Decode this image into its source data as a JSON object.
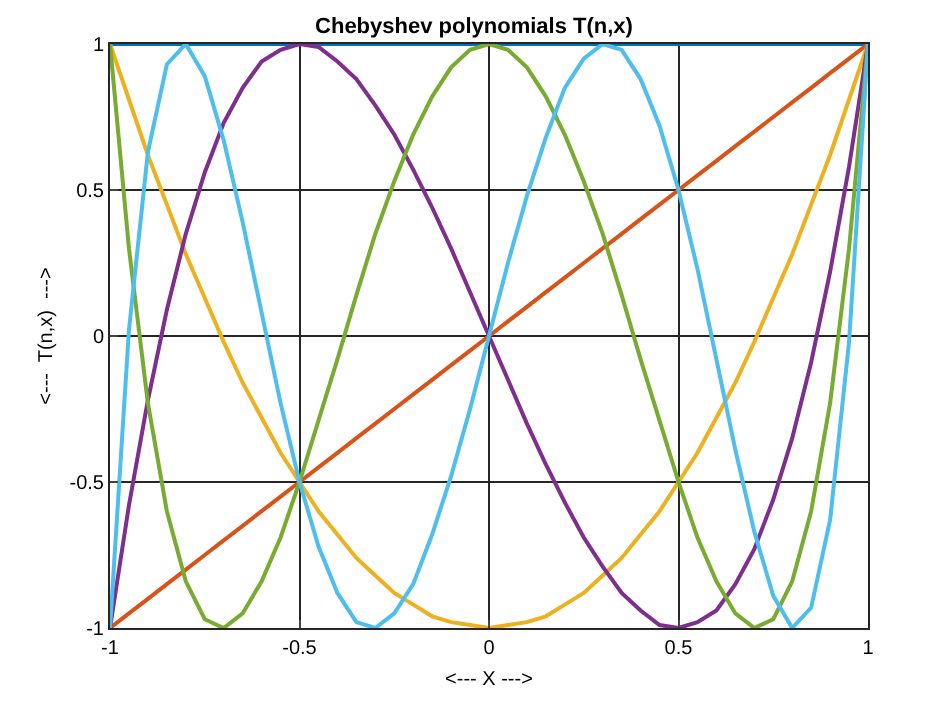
{
  "chart_data": {
    "type": "line",
    "title": "Chebyshev polynomials T(n,x)",
    "xlabel": "<--- X --->",
    "ylabel": "<---  T(n,x)  --->",
    "x": [
      -1,
      -0.95,
      -0.9,
      -0.85,
      -0.8,
      -0.75,
      -0.7,
      -0.65,
      -0.6,
      -0.55,
      -0.5,
      -0.45,
      -0.4,
      -0.35,
      -0.3,
      -0.25,
      -0.2,
      -0.15,
      -0.1,
      -0.05,
      0,
      0.05,
      0.1,
      0.15,
      0.2,
      0.25,
      0.3,
      0.35,
      0.4,
      0.45,
      0.5,
      0.55,
      0.6,
      0.65,
      0.7,
      0.75,
      0.8,
      0.85,
      0.9,
      0.95,
      1
    ],
    "series": [
      {
        "color": "#0072bd",
        "values": [
          1,
          1,
          1,
          1,
          1,
          1,
          1,
          1,
          1,
          1,
          1,
          1,
          1,
          1,
          1,
          1,
          1,
          1,
          1,
          1,
          1,
          1,
          1,
          1,
          1,
          1,
          1,
          1,
          1,
          1,
          1,
          1,
          1,
          1,
          1,
          1,
          1,
          1,
          1,
          1,
          1
        ]
      },
      {
        "color": "#d95319",
        "values": [
          -1,
          -0.95,
          -0.9,
          -0.85,
          -0.8,
          -0.75,
          -0.7,
          -0.65,
          -0.6,
          -0.55,
          -0.5,
          -0.45,
          -0.4,
          -0.35,
          -0.3,
          -0.25,
          -0.2,
          -0.15,
          -0.1,
          -0.05,
          0,
          0.05,
          0.1,
          0.15,
          0.2,
          0.25,
          0.3,
          0.35,
          0.4,
          0.45,
          0.5,
          0.55,
          0.6,
          0.65,
          0.7,
          0.75,
          0.8,
          0.85,
          0.9,
          0.95,
          1
        ]
      },
      {
        "color": "#edb120",
        "values": [
          1,
          0.81,
          0.62,
          0.45,
          0.28,
          0.13,
          -0.02,
          -0.16,
          -0.28,
          -0.4,
          -0.5,
          -0.6,
          -0.68,
          -0.76,
          -0.82,
          -0.88,
          -0.92,
          -0.96,
          -0.98,
          -0.99,
          -1,
          -0.99,
          -0.98,
          -0.96,
          -0.92,
          -0.88,
          -0.82,
          -0.76,
          -0.68,
          -0.6,
          -0.5,
          -0.4,
          -0.28,
          -0.16,
          -0.02,
          0.13,
          0.28,
          0.45,
          0.62,
          0.81,
          1
        ]
      },
      {
        "color": "#7e2f8e",
        "values": [
          -1,
          -0.58,
          -0.22,
          0.09,
          0.35,
          0.56,
          0.73,
          0.85,
          0.94,
          0.98,
          1,
          0.99,
          0.94,
          0.88,
          0.79,
          0.69,
          0.57,
          0.44,
          0.3,
          0.15,
          0,
          -0.15,
          -0.3,
          -0.44,
          -0.57,
          -0.69,
          -0.79,
          -0.88,
          -0.94,
          -0.99,
          -1,
          -0.98,
          -0.94,
          -0.85,
          -0.73,
          -0.56,
          -0.35,
          -0.09,
          0.22,
          0.58,
          1
        ]
      },
      {
        "color": "#77ac30",
        "values": [
          1,
          0.3,
          -0.23,
          -0.6,
          -0.84,
          -0.97,
          -1,
          -0.95,
          -0.84,
          -0.69,
          -0.5,
          -0.29,
          -0.08,
          0.14,
          0.35,
          0.53,
          0.69,
          0.82,
          0.92,
          0.98,
          1,
          0.98,
          0.92,
          0.82,
          0.69,
          0.53,
          0.35,
          0.14,
          -0.08,
          -0.29,
          -0.5,
          -0.69,
          -0.84,
          -0.95,
          -1,
          -0.97,
          -0.84,
          -0.6,
          -0.23,
          0.3,
          1
        ]
      },
      {
        "color": "#4dbeee",
        "values": [
          -1,
          0.02,
          0.63,
          0.93,
          1,
          0.89,
          0.67,
          0.39,
          0.08,
          -0.23,
          -0.5,
          -0.72,
          -0.88,
          -0.98,
          -1,
          -0.95,
          -0.85,
          -0.68,
          -0.48,
          -0.25,
          0,
          0.25,
          0.48,
          0.68,
          0.85,
          0.95,
          1,
          0.98,
          0.88,
          0.72,
          0.5,
          0.23,
          -0.08,
          -0.39,
          -0.67,
          -0.89,
          -1,
          -0.93,
          -0.63,
          -0.02,
          1
        ]
      }
    ],
    "xlim": [
      -1,
      1
    ],
    "ylim": [
      -1,
      1
    ],
    "xticks": [
      -1,
      -0.5,
      0,
      0.5,
      1
    ],
    "yticks": [
      -1,
      -0.5,
      0,
      0.5,
      1
    ],
    "grid": true,
    "marker": "none",
    "line_style": "solid"
  }
}
